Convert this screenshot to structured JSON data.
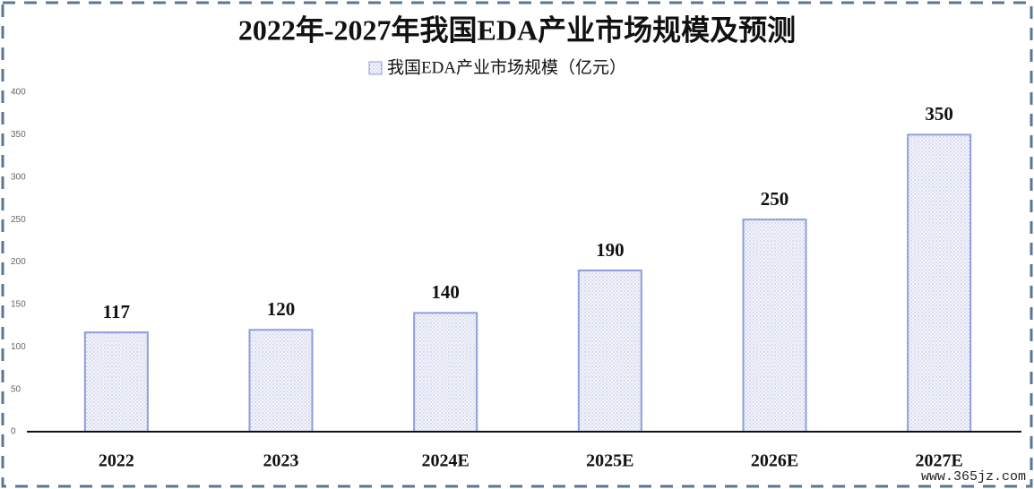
{
  "chart_data": {
    "type": "bar",
    "title": "2022年-2027年我国EDA产业市场规模及预测",
    "categories": [
      "2022",
      "2023",
      "2024E",
      "2025E",
      "2026E",
      "2027E"
    ],
    "series": [
      {
        "name": "我国EDA产业市场规模（亿元）",
        "color": "#8e9ddb",
        "values": [
          117,
          120,
          140,
          190,
          250,
          350
        ]
      }
    ],
    "ylim": [
      0,
      400
    ],
    "yticks": [
      0,
      50,
      100,
      150,
      200,
      250,
      300,
      350,
      400
    ],
    "grid": false,
    "legend": "top",
    "watermark": "www.365jz.com"
  }
}
